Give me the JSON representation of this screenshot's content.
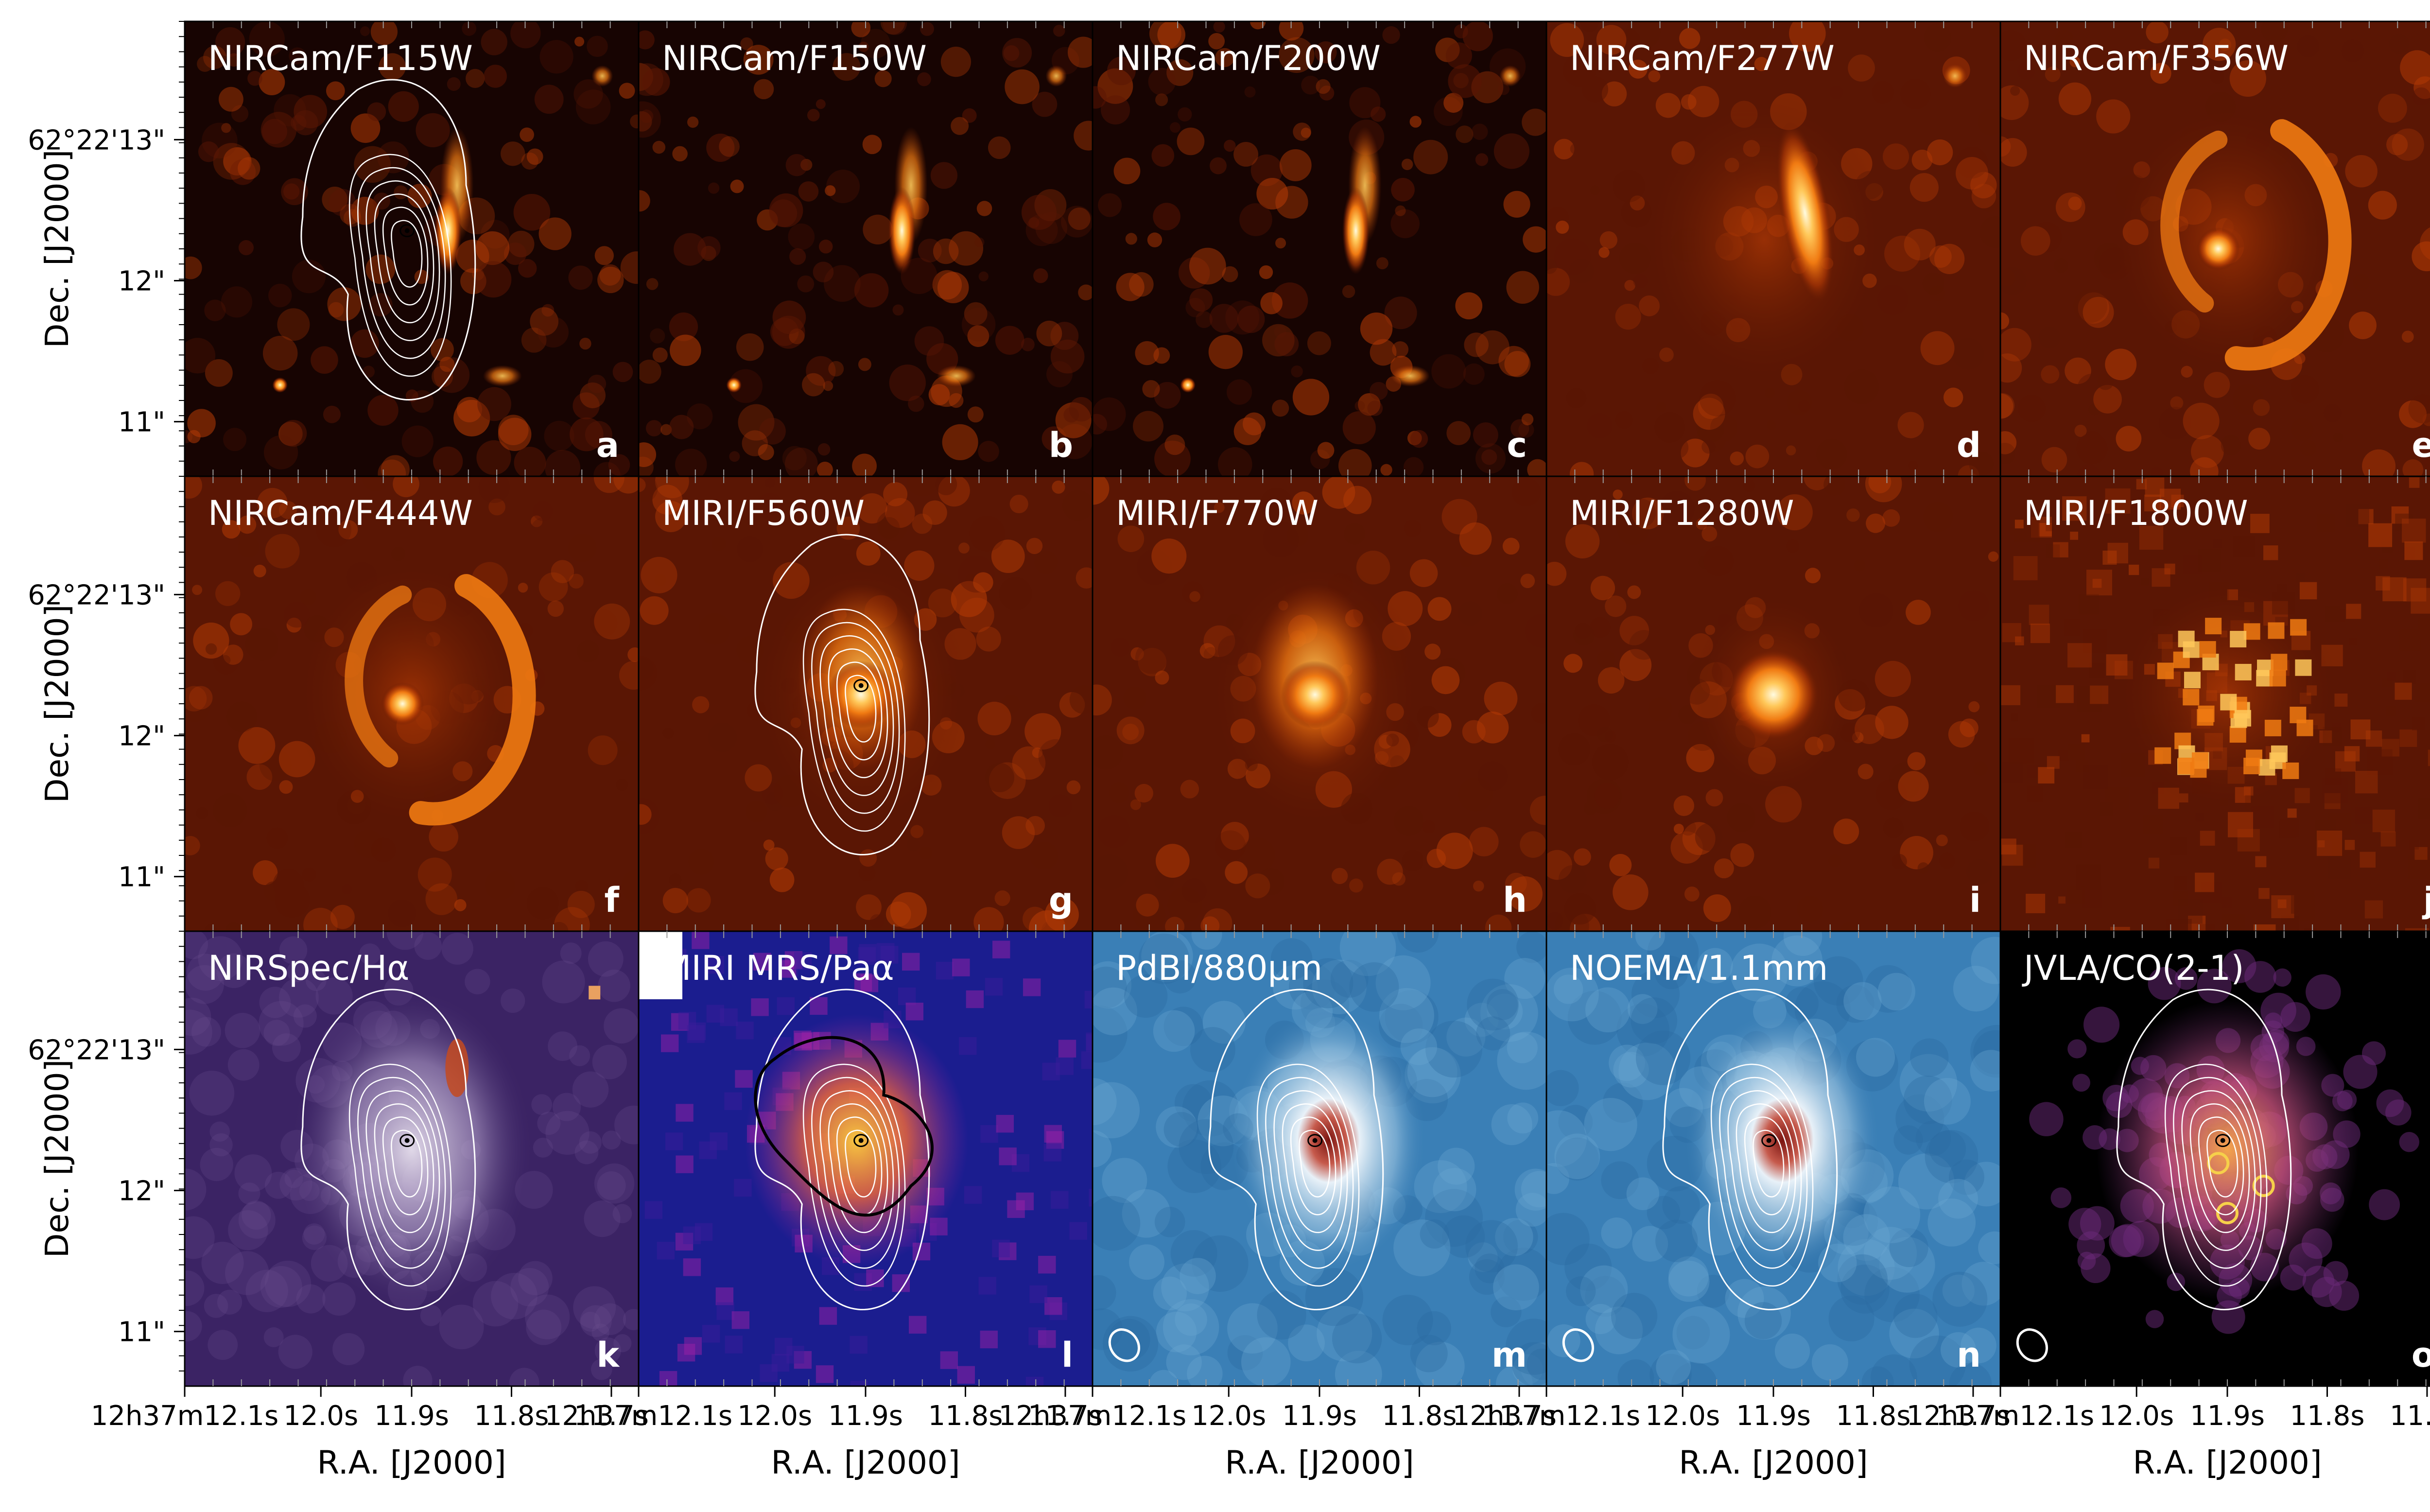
{
  "colors": {
    "hot_0": "#170402",
    "hot_1": "#5a1604",
    "hot_2": "#b23a05",
    "hot_3": "#f07a12",
    "hot_4": "#ffc85a",
    "hot_5": "#fffbe0",
    "purple_bg": "#3b2364",
    "purple_hi": "#e9e2ef",
    "plasma_bg": "#1b1d8f",
    "plasma_mid": "#9b1fa6",
    "plasma_hi": "#f7c640",
    "blue_bg": "#3a7fb6",
    "blue_hi": "#e8f1f8",
    "blue_core": "#7a1410",
    "magma_bg": "#000000",
    "magma_mid": "#6b2a7a",
    "magma_hi": "#f3a44a",
    "contour_white": "#ffffff",
    "contour_black": "#000000",
    "label_white": "#ffffff"
  },
  "y_axis": {
    "label": "Dec. [J2000]",
    "ticks": [
      "62°22'13\"",
      "12\"",
      "11\""
    ]
  },
  "x_axis": {
    "label": "R.A. [J2000]",
    "ticks": [
      "12h37m12.1s",
      "12.0s",
      "11.9s",
      "11.8s",
      "11.7s"
    ]
  },
  "panels": [
    {
      "letter": "a",
      "title": "NIRCam/F115W",
      "style": "hot-knots",
      "contours": "white"
    },
    {
      "letter": "b",
      "title": "NIRCam/F150W",
      "style": "hot-knots",
      "contours": "none"
    },
    {
      "letter": "c",
      "title": "NIRCam/F200W",
      "style": "hot-knots",
      "contours": "none"
    },
    {
      "letter": "d",
      "title": "NIRCam/F277W",
      "style": "hot-arc",
      "contours": "none"
    },
    {
      "letter": "e",
      "title": "NIRCam/F356W",
      "style": "hot-spiral",
      "contours": "none"
    },
    {
      "letter": "f",
      "title": "NIRCam/F444W",
      "style": "hot-spiral",
      "contours": "none"
    },
    {
      "letter": "g",
      "title": "MIRI/F560W",
      "style": "hot-blob",
      "contours": "white"
    },
    {
      "letter": "h",
      "title": "MIRI/F770W",
      "style": "hot-blob",
      "contours": "none"
    },
    {
      "letter": "i",
      "title": "MIRI/F1280W",
      "style": "hot-compact",
      "contours": "none"
    },
    {
      "letter": "j",
      "title": "MIRI/F1800W",
      "style": "hot-noisy",
      "contours": "none"
    },
    {
      "letter": "k",
      "title": "NIRSpec/Hα",
      "style": "purple",
      "contours": "white"
    },
    {
      "letter": "l",
      "title": "MIRI MRS/Paα",
      "style": "plasma",
      "contours": "white+black"
    },
    {
      "letter": "m",
      "title": "PdBI/880μm",
      "style": "blue",
      "contours": "white",
      "beam": true
    },
    {
      "letter": "n",
      "title": "NOEMA/1.1mm",
      "style": "blue",
      "contours": "white",
      "beam": true
    },
    {
      "letter": "o",
      "title": "JVLA/CO(2-1)",
      "style": "magma",
      "contours": "white",
      "beam": true
    }
  ]
}
